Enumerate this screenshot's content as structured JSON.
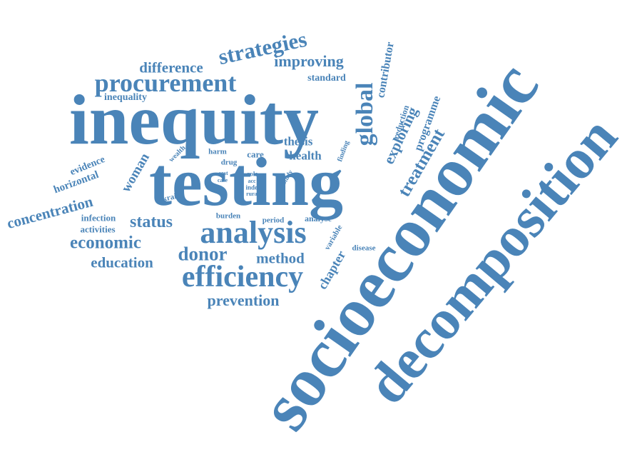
{
  "color": "#4a84b8",
  "words": [
    {
      "text": "socioeconomic"
    },
    {
      "text": "decomposition"
    },
    {
      "text": "inequity"
    },
    {
      "text": "testing"
    },
    {
      "text": "analysis"
    },
    {
      "text": "efficiency"
    },
    {
      "text": "procurement"
    },
    {
      "text": "strategies"
    },
    {
      "text": "difference"
    },
    {
      "text": "improving"
    },
    {
      "text": "standard"
    },
    {
      "text": "inequality"
    },
    {
      "text": "global"
    },
    {
      "text": "contributor"
    },
    {
      "text": "reduction"
    },
    {
      "text": "programme"
    },
    {
      "text": "exploring"
    },
    {
      "text": "treatment"
    },
    {
      "text": "thesis"
    },
    {
      "text": "health"
    },
    {
      "text": "care"
    },
    {
      "text": "harm"
    },
    {
      "text": "wealth"
    },
    {
      "text": "drug"
    },
    {
      "text": "finding"
    },
    {
      "text": "woman"
    },
    {
      "text": "evidence"
    },
    {
      "text": "horizontal"
    },
    {
      "text": "concentration"
    },
    {
      "text": "ukraine"
    },
    {
      "text": "cost"
    },
    {
      "text": "case"
    },
    {
      "text": "role"
    },
    {
      "text": "acc"
    },
    {
      "text": "index"
    },
    {
      "text": "rural"
    },
    {
      "text": "study"
    },
    {
      "text": "infection"
    },
    {
      "text": "activities"
    },
    {
      "text": "status"
    },
    {
      "text": "burden"
    },
    {
      "text": "period"
    },
    {
      "text": "analyse"
    },
    {
      "text": "variable"
    },
    {
      "text": "economic"
    },
    {
      "text": "chapter"
    },
    {
      "text": "disease"
    },
    {
      "text": "donor"
    },
    {
      "text": "method"
    },
    {
      "text": "education"
    },
    {
      "text": "prevention"
    }
  ]
}
